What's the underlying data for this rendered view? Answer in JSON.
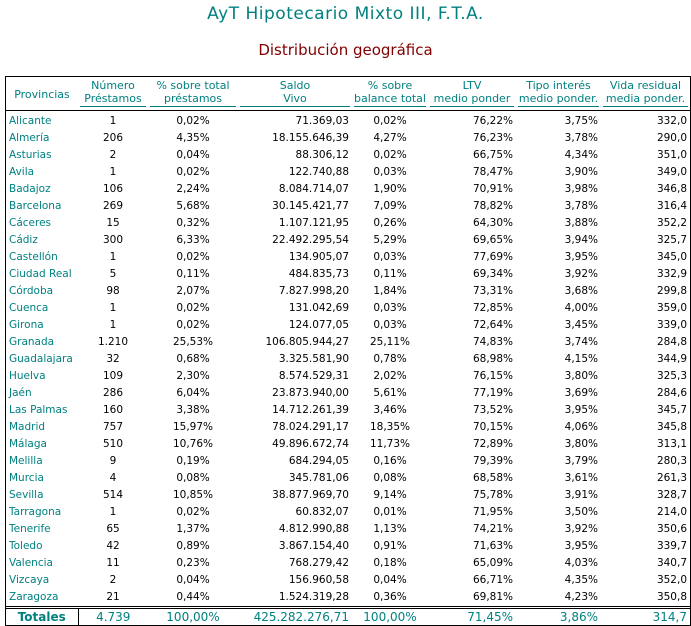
{
  "title": "AyT Hipotecario Mixto III, F.T.A.",
  "subtitle": "Distribución geográfica",
  "headers": [
    {
      "l1": "Provincias",
      "l2": ""
    },
    {
      "l1": "Número",
      "l2": "Préstamos"
    },
    {
      "l1": "% sobre total",
      "l2": "préstamos"
    },
    {
      "l1": "Saldo",
      "l2": "Vivo"
    },
    {
      "l1": "% sobre",
      "l2": "balance total"
    },
    {
      "l1": "LTV",
      "l2": "medio ponder"
    },
    {
      "l1": "Tipo interés",
      "l2": "medio ponder."
    },
    {
      "l1": "Vida residual",
      "l2": "media ponder."
    }
  ],
  "rows": [
    [
      "Alicante",
      "1",
      "0,02%",
      "71.369,03",
      "0,02%",
      "76,22%",
      "3,75%",
      "332,0"
    ],
    [
      "Almería",
      "206",
      "4,35%",
      "18.155.646,39",
      "4,27%",
      "76,23%",
      "3,78%",
      "290,0"
    ],
    [
      "Asturias",
      "2",
      "0,04%",
      "88.306,12",
      "0,02%",
      "66,75%",
      "4,34%",
      "351,0"
    ],
    [
      "Avila",
      "1",
      "0,02%",
      "122.740,88",
      "0,03%",
      "78,47%",
      "3,90%",
      "349,0"
    ],
    [
      "Badajoz",
      "106",
      "2,24%",
      "8.084.714,07",
      "1,90%",
      "70,91%",
      "3,98%",
      "346,8"
    ],
    [
      "Barcelona",
      "269",
      "5,68%",
      "30.145.421,77",
      "7,09%",
      "78,82%",
      "3,78%",
      "316,4"
    ],
    [
      "Cáceres",
      "15",
      "0,32%",
      "1.107.121,95",
      "0,26%",
      "64,30%",
      "3,88%",
      "352,2"
    ],
    [
      "Cádiz",
      "300",
      "6,33%",
      "22.492.295,54",
      "5,29%",
      "69,65%",
      "3,94%",
      "325,7"
    ],
    [
      "Castellón",
      "1",
      "0,02%",
      "134.905,07",
      "0,03%",
      "77,69%",
      "3,95%",
      "345,0"
    ],
    [
      "Ciudad Real",
      "5",
      "0,11%",
      "484.835,73",
      "0,11%",
      "69,34%",
      "3,92%",
      "332,9"
    ],
    [
      "Córdoba",
      "98",
      "2,07%",
      "7.827.998,20",
      "1,84%",
      "73,31%",
      "3,68%",
      "299,8"
    ],
    [
      "Cuenca",
      "1",
      "0,02%",
      "131.042,69",
      "0,03%",
      "72,85%",
      "4,00%",
      "359,0"
    ],
    [
      "Girona",
      "1",
      "0,02%",
      "124.077,05",
      "0,03%",
      "72,64%",
      "3,45%",
      "339,0"
    ],
    [
      "Granada",
      "1.210",
      "25,53%",
      "106.805.944,27",
      "25,11%",
      "74,83%",
      "3,74%",
      "284,8"
    ],
    [
      "Guadalajara",
      "32",
      "0,68%",
      "3.325.581,90",
      "0,78%",
      "68,98%",
      "4,15%",
      "344,9"
    ],
    [
      "Huelva",
      "109",
      "2,30%",
      "8.574.529,31",
      "2,02%",
      "76,15%",
      "3,80%",
      "325,3"
    ],
    [
      "Jaén",
      "286",
      "6,04%",
      "23.873.940,00",
      "5,61%",
      "77,19%",
      "3,69%",
      "284,6"
    ],
    [
      "Las Palmas",
      "160",
      "3,38%",
      "14.712.261,39",
      "3,46%",
      "73,52%",
      "3,95%",
      "345,7"
    ],
    [
      "Madrid",
      "757",
      "15,97%",
      "78.024.291,17",
      "18,35%",
      "70,15%",
      "4,06%",
      "345,8"
    ],
    [
      "Málaga",
      "510",
      "10,76%",
      "49.896.672,74",
      "11,73%",
      "72,89%",
      "3,80%",
      "313,1"
    ],
    [
      "Melilla",
      "9",
      "0,19%",
      "684.294,05",
      "0,16%",
      "79,39%",
      "3,79%",
      "280,3"
    ],
    [
      "Murcia",
      "4",
      "0,08%",
      "345.781,06",
      "0,08%",
      "68,58%",
      "3,61%",
      "261,3"
    ],
    [
      "Sevilla",
      "514",
      "10,85%",
      "38.877.969,70",
      "9,14%",
      "75,78%",
      "3,91%",
      "328,7"
    ],
    [
      "Tarragona",
      "1",
      "0,02%",
      "60.832,07",
      "0,01%",
      "71,95%",
      "3,50%",
      "214,0"
    ],
    [
      "Tenerife",
      "65",
      "1,37%",
      "4.812.990,88",
      "1,13%",
      "74,21%",
      "3,92%",
      "350,6"
    ],
    [
      "Toledo",
      "42",
      "0,89%",
      "3.867.154,40",
      "0,91%",
      "71,63%",
      "3,95%",
      "339,7"
    ],
    [
      "Valencia",
      "11",
      "0,23%",
      "768.279,42",
      "0,18%",
      "65,09%",
      "4,03%",
      "340,7"
    ],
    [
      "Vizcaya",
      "2",
      "0,04%",
      "156.960,58",
      "0,04%",
      "66,71%",
      "4,35%",
      "352,0"
    ],
    [
      "Zaragoza",
      "21",
      "0,44%",
      "1.524.319,28",
      "0,36%",
      "69,81%",
      "4,23%",
      "350,8"
    ]
  ],
  "totals": [
    "Totales",
    "4.739",
    "100,00%",
    "425.282.276,71",
    "100,00%",
    "71,45%",
    "3,86%",
    "314,7"
  ]
}
